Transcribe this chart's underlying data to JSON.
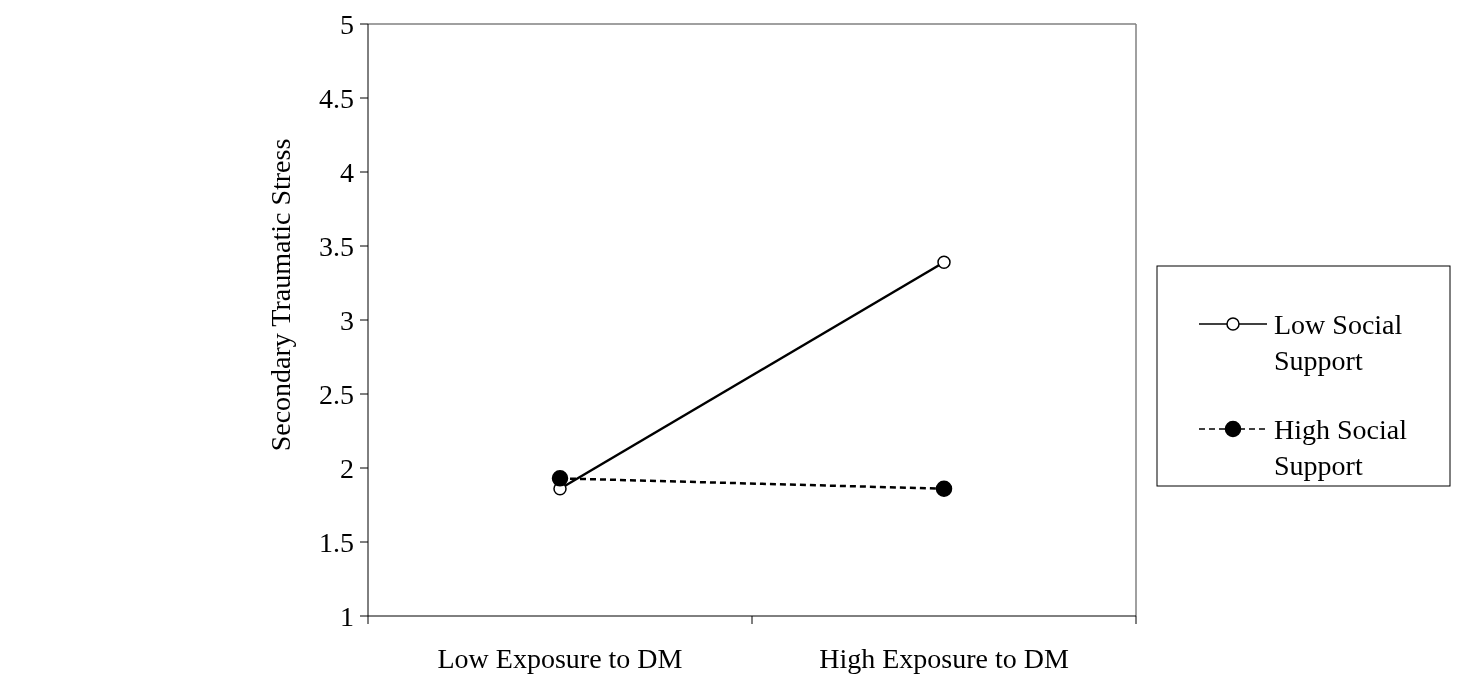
{
  "chart_data": {
    "type": "line",
    "ylabel": "Secondary Traumatic Stress",
    "categories": [
      "Low Exposure to DM",
      "High Exposure to DM"
    ],
    "ylim": [
      1,
      5
    ],
    "yticks": [
      1,
      1.5,
      2,
      2.5,
      3,
      3.5,
      4,
      4.5,
      5
    ],
    "legend": "right",
    "marker": "circle",
    "grid": false,
    "series": [
      {
        "name": "Low Social Support",
        "color": "#000000",
        "values": [
          1.86,
          3.39
        ],
        "line_style": "solid"
      },
      {
        "name": "High Social Support",
        "color": "#000000",
        "values": [
          1.93,
          1.86
        ],
        "line_style": "dashed"
      }
    ]
  }
}
